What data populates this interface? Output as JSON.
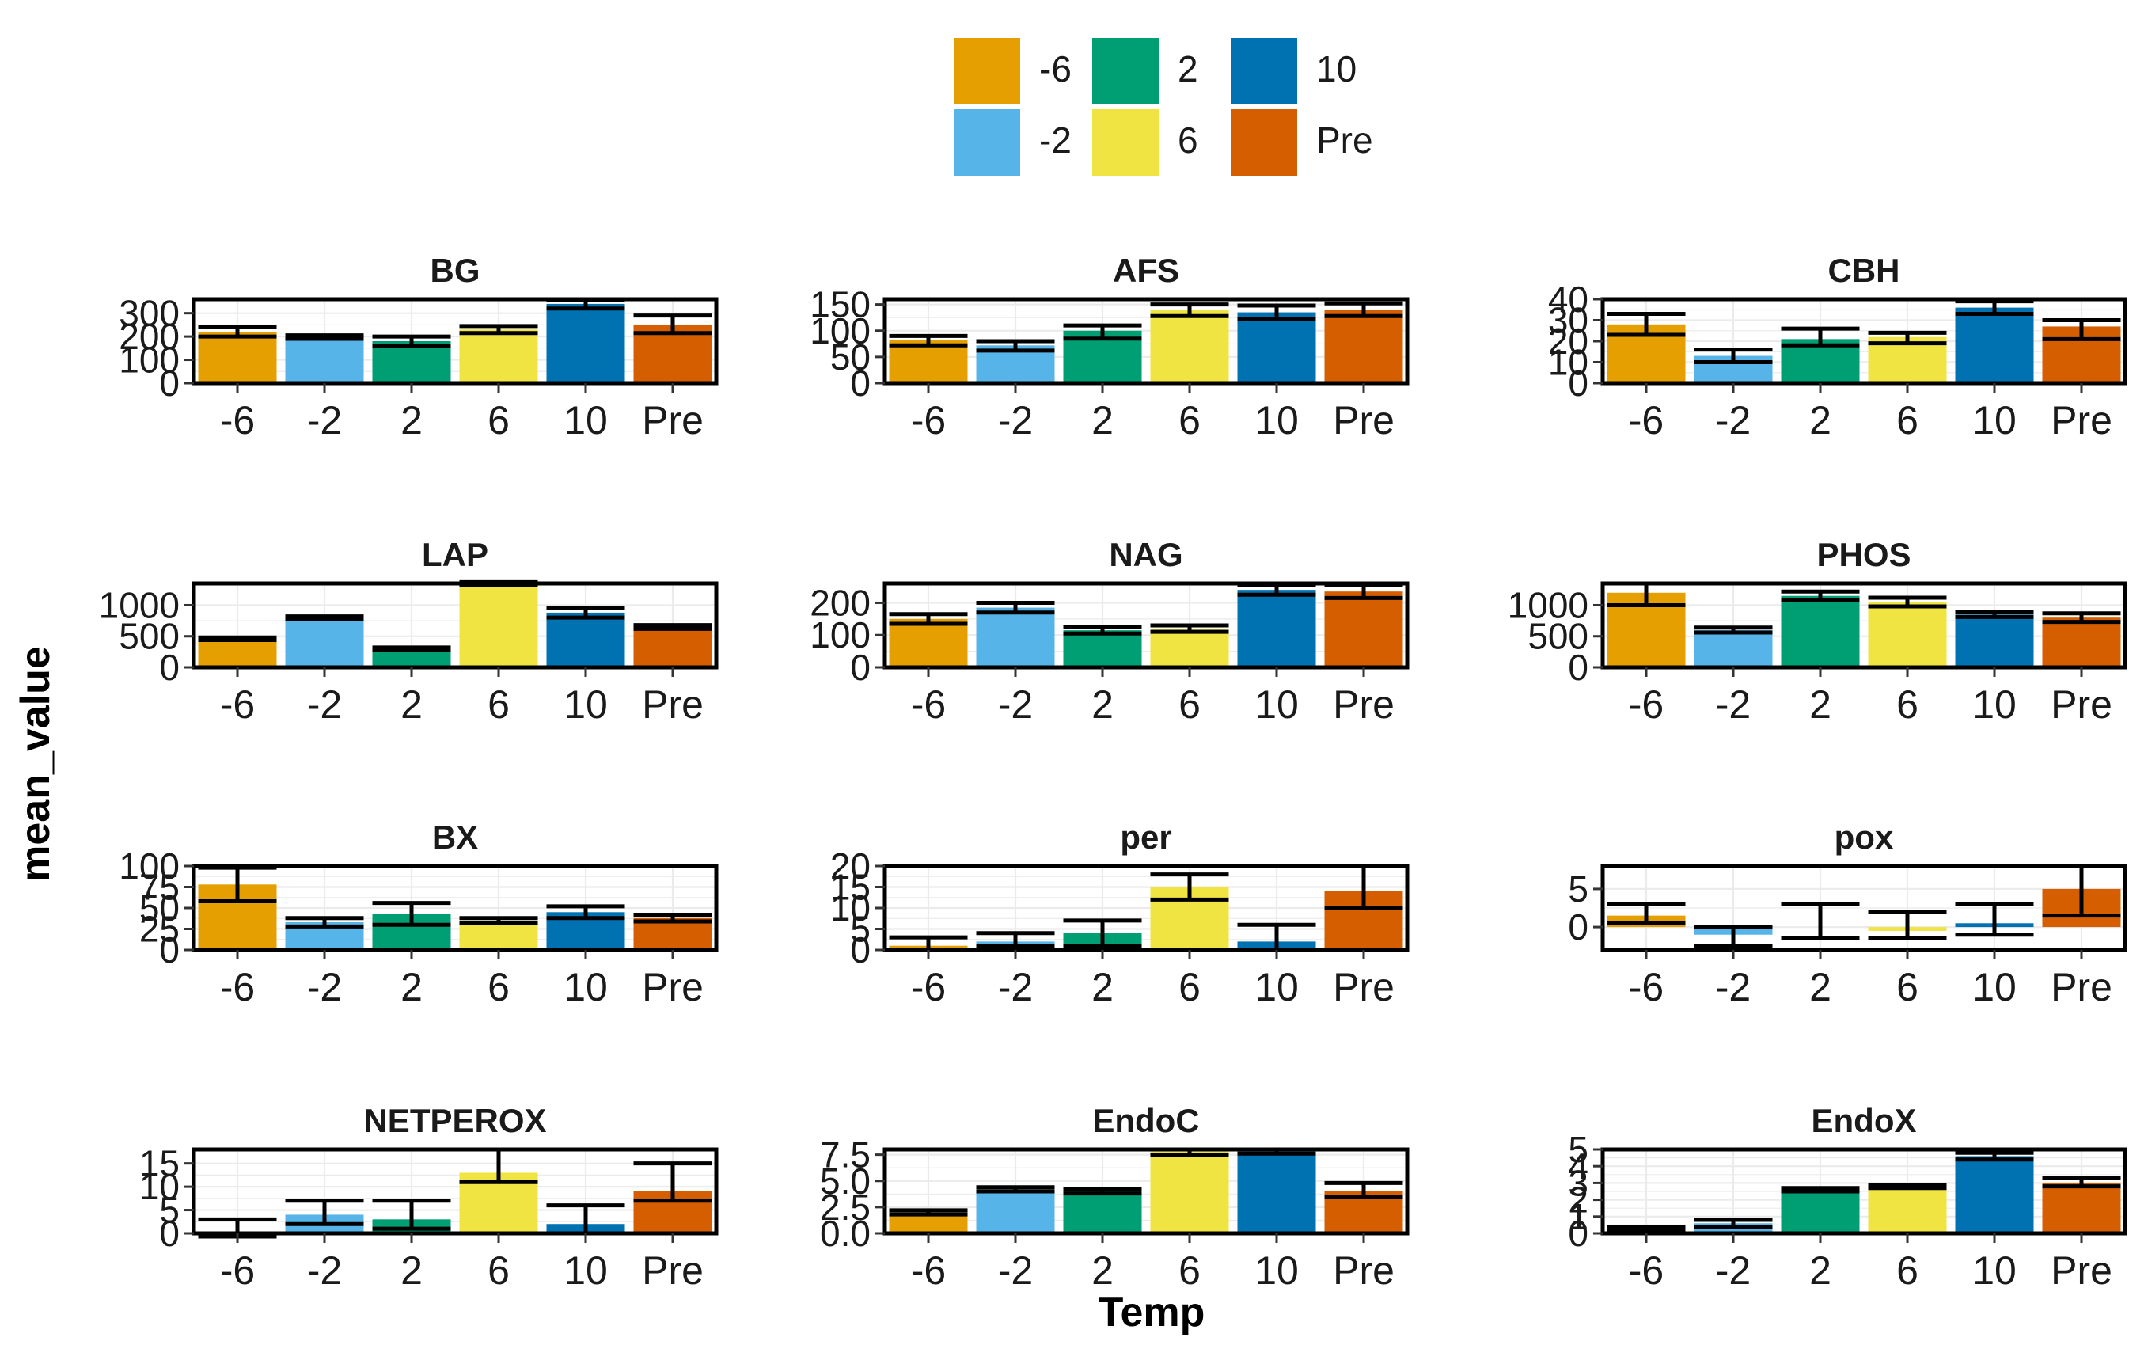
{
  "chart_data": {
    "type": "bar",
    "layout": "facet grid, 4 rows x 3 columns, free y scales",
    "xlabel": "Temp",
    "ylabel": "mean_value",
    "categories": [
      "-6",
      "-2",
      "2",
      "6",
      "10",
      "Pre"
    ],
    "legend": {
      "placement": "top",
      "entries": [
        {
          "label": "-6",
          "color": "#E69F00"
        },
        {
          "label": "-2",
          "color": "#56B4E9"
        },
        {
          "label": "2",
          "color": "#009E73"
        },
        {
          "label": "6",
          "color": "#F0E442"
        },
        {
          "label": "10",
          "color": "#0072B2"
        },
        {
          "label": "Pre",
          "color": "#D55E00"
        }
      ]
    },
    "grid": true,
    "panels": [
      {
        "title": "BG",
        "ylim": [
          0,
          360
        ],
        "yticks": [
          0,
          100,
          200,
          300
        ],
        "values": [
          220,
          200,
          180,
          230,
          340,
          250
        ],
        "error": [
          [
            200,
            240
          ],
          [
            190,
            205
          ],
          [
            160,
            200
          ],
          [
            215,
            245
          ],
          [
            320,
            355
          ],
          [
            215,
            290
          ]
        ]
      },
      {
        "title": "AFS",
        "ylim": [
          0,
          160
        ],
        "yticks": [
          0,
          50,
          100,
          150
        ],
        "values": [
          82,
          72,
          100,
          140,
          135,
          140
        ],
        "error": [
          [
            72,
            90
          ],
          [
            62,
            80
          ],
          [
            85,
            110
          ],
          [
            128,
            150
          ],
          [
            122,
            148
          ],
          [
            128,
            152
          ]
        ]
      },
      {
        "title": "CBH",
        "ylim": [
          0,
          40
        ],
        "yticks": [
          0,
          10,
          20,
          30,
          40
        ],
        "values": [
          28,
          13,
          21,
          22,
          36,
          27
        ],
        "error": [
          [
            23,
            33
          ],
          [
            10,
            16
          ],
          [
            18,
            26
          ],
          [
            19,
            24
          ],
          [
            33,
            39
          ],
          [
            21,
            30
          ]
        ]
      },
      {
        "title": "LAP",
        "ylim": [
          0,
          1350
        ],
        "yticks": [
          0,
          500,
          1000
        ],
        "values": [
          460,
          800,
          300,
          1350,
          880,
          650
        ],
        "error": [
          [
            440,
            480
          ],
          [
            780,
            820
          ],
          [
            280,
            320
          ],
          [
            1320,
            1370
          ],
          [
            800,
            960
          ],
          [
            620,
            680
          ]
        ]
      },
      {
        "title": "NAG",
        "ylim": [
          0,
          260
        ],
        "yticks": [
          0,
          100,
          200
        ],
        "values": [
          150,
          185,
          115,
          120,
          240,
          235
        ],
        "error": [
          [
            135,
            165
          ],
          [
            170,
            200
          ],
          [
            105,
            125
          ],
          [
            110,
            130
          ],
          [
            225,
            255
          ],
          [
            215,
            255
          ]
        ]
      },
      {
        "title": "PHOS",
        "ylim": [
          0,
          1350
        ],
        "yticks": [
          0,
          500,
          1000
        ],
        "values": [
          1200,
          600,
          1150,
          1050,
          850,
          800
        ],
        "error": [
          [
            1000,
            1350
          ],
          [
            560,
            640
          ],
          [
            1080,
            1220
          ],
          [
            980,
            1120
          ],
          [
            810,
            890
          ],
          [
            730,
            870
          ]
        ]
      },
      {
        "title": "BX",
        "ylim": [
          0,
          100
        ],
        "yticks": [
          0,
          25,
          50,
          75,
          100
        ],
        "values": [
          78,
          33,
          43,
          35,
          45,
          38
        ],
        "error": [
          [
            58,
            98
          ],
          [
            28,
            38
          ],
          [
            30,
            56
          ],
          [
            32,
            38
          ],
          [
            38,
            52
          ],
          [
            34,
            42
          ]
        ]
      },
      {
        "title": "per",
        "ylim": [
          0,
          20
        ],
        "yticks": [
          0,
          5,
          10,
          15,
          20
        ],
        "values": [
          1,
          2,
          4,
          15,
          2,
          14
        ],
        "error": [
          [
            0,
            3
          ],
          [
            1,
            4
          ],
          [
            1,
            7
          ],
          [
            12,
            18
          ],
          [
            0,
            6
          ],
          [
            10,
            20
          ]
        ]
      },
      {
        "title": "pox",
        "ylim": [
          -3,
          8
        ],
        "yticks": [
          0,
          5
        ],
        "values": [
          1.5,
          -1,
          0,
          -0.5,
          0.5,
          5
        ],
        "error": [
          [
            0.5,
            3
          ],
          [
            -2.5,
            0
          ],
          [
            -1.5,
            3
          ],
          [
            -1.5,
            2
          ],
          [
            -1,
            3
          ],
          [
            1.5,
            8
          ]
        ]
      },
      {
        "title": "NETPEROX",
        "ylim": [
          0,
          18
        ],
        "yticks": [
          0,
          5,
          10,
          15
        ],
        "values": [
          0,
          4,
          3,
          13,
          2,
          9
        ],
        "error": [
          [
            -1,
            3
          ],
          [
            2,
            7
          ],
          [
            1,
            7
          ],
          [
            11,
            18
          ],
          [
            0,
            6
          ],
          [
            7,
            15
          ]
        ]
      },
      {
        "title": "EndoC",
        "ylim": [
          0,
          8
        ],
        "yticks": [
          0.0,
          2.5,
          5.0,
          7.5
        ],
        "values": [
          2,
          4.2,
          4,
          7.8,
          7.8,
          4
        ],
        "error": [
          [
            1.8,
            2.2
          ],
          [
            4.0,
            4.4
          ],
          [
            3.8,
            4.2
          ],
          [
            7.5,
            8.0
          ],
          [
            7.6,
            8.0
          ],
          [
            3.5,
            4.8
          ]
        ]
      },
      {
        "title": "EndoX",
        "ylim": [
          0,
          5
        ],
        "yticks": [
          0,
          1,
          2,
          3,
          4,
          5
        ],
        "values": [
          0.3,
          0.6,
          2.6,
          2.8,
          4.6,
          3.0
        ],
        "error": [
          [
            0.2,
            0.4
          ],
          [
            0.4,
            0.8
          ],
          [
            2.5,
            2.7
          ],
          [
            2.7,
            2.9
          ],
          [
            4.4,
            4.8
          ],
          [
            2.8,
            3.3
          ]
        ]
      }
    ]
  }
}
